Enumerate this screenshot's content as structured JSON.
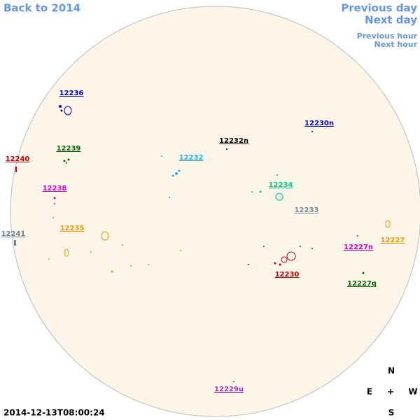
{
  "nav": {
    "back": "Back to 2014",
    "previous_day": "Previous day",
    "next_day": "Next day",
    "previous_hour": "Previous hour",
    "next_hour": "Next hour"
  },
  "regions": [
    {
      "label": "12236",
      "color": "#0000cc"
    },
    {
      "label": "12230n",
      "color": "#0000cc"
    },
    {
      "label": "12232n",
      "color": "#000000"
    },
    {
      "label": "12239",
      "color": "#006600"
    },
    {
      "label": "12240",
      "color": "#cc0000"
    },
    {
      "label": "12232",
      "color": "#1fb0e0"
    },
    {
      "label": "12234",
      "color": "#00cc88"
    },
    {
      "label": "12238",
      "color": "#dd00dd"
    },
    {
      "label": "12233",
      "color": "#778899"
    },
    {
      "label": "12241",
      "color": "#708090"
    },
    {
      "label": "12235",
      "color": "#ee9900"
    },
    {
      "label": "12227",
      "color": "#ee9900"
    },
    {
      "label": "12227n",
      "color": "#cc00cc"
    },
    {
      "label": "12230",
      "color": "#cc0000"
    },
    {
      "label": "12227q",
      "color": "#006600"
    },
    {
      "label": "12229u",
      "color": "#9933bb"
    }
  ],
  "timestamp": "2014-12-13T08:00:24",
  "compass": {
    "north": "N",
    "east": "E",
    "center": "+",
    "west": "W",
    "south": "S"
  }
}
